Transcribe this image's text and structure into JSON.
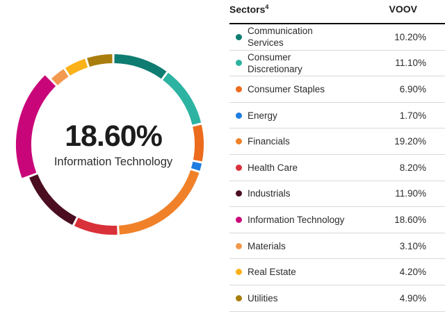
{
  "page": {
    "background": "#ffffff"
  },
  "chart_data": {
    "type": "donut",
    "unit": "%",
    "total": 100,
    "direction": "clockwise",
    "start_angle_deg": 0,
    "legend_position": "right-table",
    "highlight": "Information Technology",
    "center_label": {
      "value": "18.60%",
      "label": "Information Technology"
    },
    "segments": [
      {
        "label": "Communication Services",
        "value": 10.2,
        "color": "#0f7c71"
      },
      {
        "label": "Consumer Discretionary",
        "value": 11.1,
        "color": "#2db3a1"
      },
      {
        "label": "Consumer Staples",
        "value": 6.9,
        "color": "#ec6b1d"
      },
      {
        "label": "Energy",
        "value": 1.7,
        "color": "#1e7de0"
      },
      {
        "label": "Financials",
        "value": 19.2,
        "color": "#f08129"
      },
      {
        "label": "Health Care",
        "value": 8.2,
        "color": "#d93139"
      },
      {
        "label": "Industrials",
        "value": 11.9,
        "color": "#4a0e20"
      },
      {
        "label": "Information Technology",
        "value": 18.6,
        "color": "#c90679"
      },
      {
        "label": "Materials",
        "value": 3.1,
        "color": "#f2994f"
      },
      {
        "label": "Real Estate",
        "value": 4.2,
        "color": "#fbb118"
      },
      {
        "label": "Utilities",
        "value": 4.9,
        "color": "#aa7e0e"
      }
    ]
  },
  "table": {
    "header": {
      "sectors": "Sectors",
      "sectors_sup": "4",
      "fund": "VOOV"
    },
    "rows": [
      {
        "label": "Communication\nServices",
        "value": "10.20%"
      },
      {
        "label": "Consumer\nDiscretionary",
        "value": "11.10%"
      },
      {
        "label": "Consumer Staples",
        "value": "6.90%"
      },
      {
        "label": "Energy",
        "value": "1.70%"
      },
      {
        "label": "Financials",
        "value": "19.20%"
      },
      {
        "label": "Health Care",
        "value": "8.20%"
      },
      {
        "label": "Industrials",
        "value": "11.90%"
      },
      {
        "label": "Information Technology",
        "value": "18.60%"
      },
      {
        "label": "Materials",
        "value": "3.10%"
      },
      {
        "label": "Real Estate",
        "value": "4.20%"
      },
      {
        "label": "Utilities",
        "value": "4.90%"
      }
    ]
  }
}
